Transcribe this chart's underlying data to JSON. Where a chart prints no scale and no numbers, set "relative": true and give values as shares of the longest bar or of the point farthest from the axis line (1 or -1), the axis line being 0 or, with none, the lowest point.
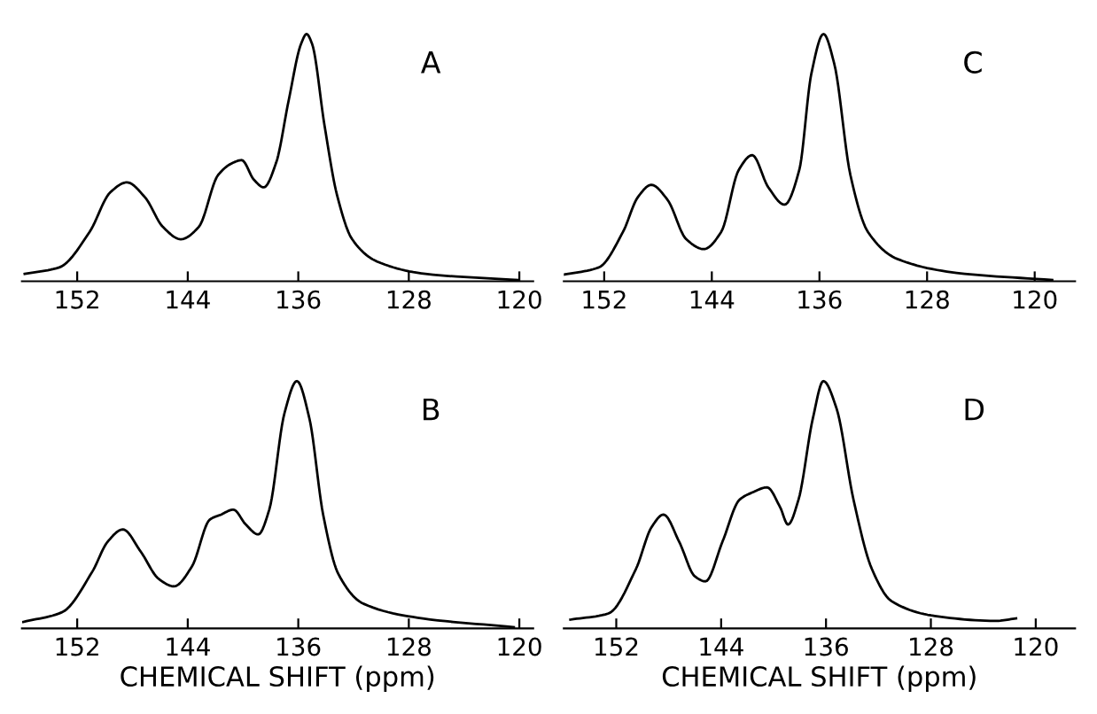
{
  "chart_data": [
    {
      "type": "line",
      "relative": true,
      "annotations": [
        "A"
      ],
      "xlim": [
        156,
        119
      ],
      "xticks": [
        152,
        144,
        136,
        128,
        120
      ],
      "grid": false,
      "series": [
        {
          "color": "#000000",
          "x": [
            155.8,
            153.3,
            151.1,
            149.6,
            148.4,
            147.1,
            145.8,
            144.5,
            143.2,
            141.8,
            140.7,
            140.1,
            139.2,
            138.5,
            137.6,
            136.7,
            135.8,
            135.4,
            135.0,
            134.1,
            133.2,
            132.1,
            130.3,
            126.8,
            120.1
          ],
          "values": [
            0.03,
            0.056,
            0.2,
            0.36,
            0.4,
            0.34,
            0.22,
            0.17,
            0.22,
            0.43,
            0.48,
            0.49,
            0.41,
            0.38,
            0.48,
            0.73,
            0.96,
            1,
            0.96,
            0.63,
            0.35,
            0.17,
            0.08,
            0.03,
            0.005
          ]
        }
      ]
    },
    {
      "type": "line",
      "relative": true,
      "annotations": [
        "C"
      ],
      "xlim": [
        155,
        117
      ],
      "xticks": [
        152,
        144,
        136,
        128,
        120
      ],
      "grid": false,
      "series": [
        {
          "color": "#000000",
          "x": [
            155.0,
            152.4,
            150.6,
            149.5,
            148.5,
            147.3,
            145.9,
            144.6,
            143.3,
            142.0,
            141.0,
            139.8,
            138.6,
            137.5,
            136.6,
            135.7,
            134.9,
            133.7,
            132.4,
            130.2,
            125.8,
            118.7
          ],
          "values": [
            0.027,
            0.056,
            0.2,
            0.34,
            0.39,
            0.33,
            0.17,
            0.13,
            0.2,
            0.45,
            0.51,
            0.38,
            0.31,
            0.45,
            0.84,
            1,
            0.88,
            0.43,
            0.2,
            0.09,
            0.034,
            0.005
          ]
        }
      ]
    },
    {
      "type": "line",
      "relative": true,
      "annotations": [
        "B"
      ],
      "xlabel": "CHEMICAL SHIFT (ppm)",
      "xlim": [
        156,
        119
      ],
      "xticks": [
        152,
        144,
        136,
        128,
        120
      ],
      "grid": false,
      "series": [
        {
          "color": "#000000",
          "x": [
            155.9,
            153.1,
            150.9,
            149.8,
            148.7,
            147.4,
            146.1,
            145.0,
            143.7,
            142.4,
            141.6,
            140.7,
            139.8,
            138.9,
            138.1,
            137.0,
            136.1,
            135.2,
            134.2,
            133.1,
            131.3,
            127.0,
            120.4
          ],
          "values": [
            0.026,
            0.065,
            0.23,
            0.35,
            0.4,
            0.31,
            0.2,
            0.17,
            0.25,
            0.44,
            0.46,
            0.48,
            0.42,
            0.38,
            0.48,
            0.87,
            1,
            0.85,
            0.46,
            0.22,
            0.1,
            0.04,
            0.005
          ]
        }
      ]
    },
    {
      "type": "line",
      "relative": true,
      "annotations": [
        "D"
      ],
      "xlabel": "CHEMICAL SHIFT (ppm)",
      "xlim": [
        156,
        117
      ],
      "xticks": [
        152,
        144,
        136,
        128,
        120
      ],
      "grid": false,
      "series": [
        {
          "color": "#000000",
          "x": [
            155.5,
            152.6,
            150.5,
            149.3,
            148.4,
            147.2,
            146.0,
            145.2,
            143.9,
            142.6,
            141.6,
            140.5,
            139.5,
            138.9,
            138.1,
            137.0,
            136.2,
            135.2,
            133.9,
            132.5,
            131.0,
            127.7,
            123.1,
            121.5
          ],
          "values": [
            0.035,
            0.06,
            0.24,
            0.41,
            0.46,
            0.35,
            0.21,
            0.19,
            0.35,
            0.52,
            0.55,
            0.57,
            0.49,
            0.42,
            0.52,
            0.85,
            1,
            0.89,
            0.52,
            0.24,
            0.11,
            0.05,
            0.03,
            0.04
          ]
        }
      ]
    }
  ]
}
